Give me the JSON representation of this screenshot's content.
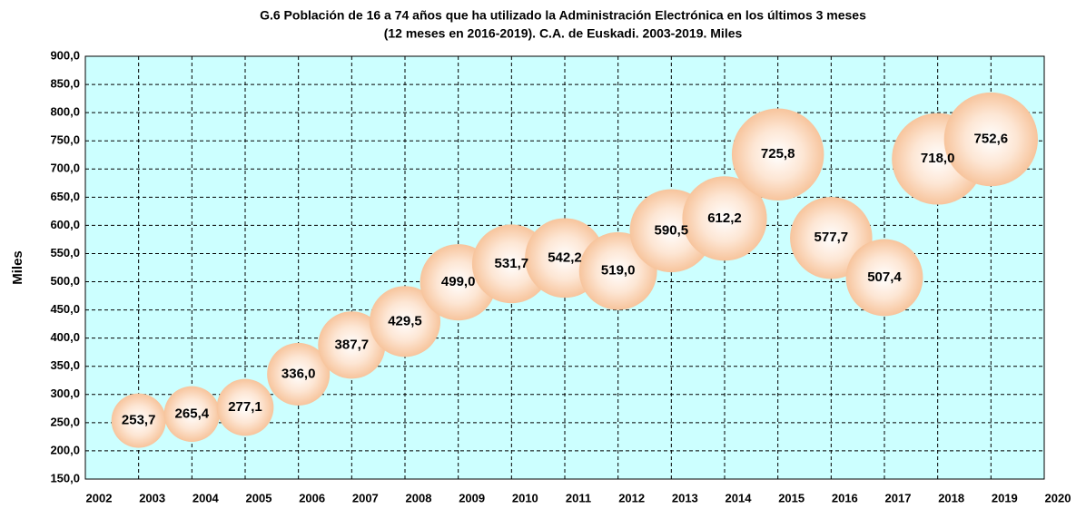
{
  "chart_data": {
    "type": "bubble",
    "title": "G.6 Población de 16 a 74 años que ha utilizado la Administración Electrónica en los últimos 3 meses",
    "subtitle": "(12 meses en 2016-2019).  C.A. de Euskadi.  2003-2019.  Miles",
    "ylabel": "Miles",
    "x": [
      2003,
      2004,
      2005,
      2006,
      2007,
      2008,
      2009,
      2010,
      2011,
      2012,
      2013,
      2014,
      2015,
      2016,
      2017,
      2018,
      2019
    ],
    "values": [
      253.7,
      265.4,
      277.1,
      336.0,
      387.7,
      429.5,
      499.0,
      531.7,
      542.2,
      519.0,
      590.5,
      612.2,
      725.8,
      577.7,
      507.4,
      718.0,
      752.6
    ],
    "value_labels": [
      "253,7",
      "265,4",
      "277,1",
      "336,0",
      "387,7",
      "429,5",
      "499,0",
      "531,7",
      "542,2",
      "519,0",
      "590,5",
      "612,2",
      "725,8",
      "577,7",
      "507,4",
      "718,0",
      "752,6"
    ],
    "color": "#f7c49c",
    "xlim": [
      2002,
      2020
    ],
    "xticks": [
      2002,
      2003,
      2004,
      2005,
      2006,
      2007,
      2008,
      2009,
      2010,
      2011,
      2012,
      2013,
      2014,
      2015,
      2016,
      2017,
      2018,
      2019,
      2020
    ],
    "ylim": [
      150,
      900
    ],
    "yticks": [
      {
        "value": 150,
        "label": "150,0"
      },
      {
        "value": 200,
        "label": "200,0"
      },
      {
        "value": 250,
        "label": "250,0"
      },
      {
        "value": 300,
        "label": "300,0"
      },
      {
        "value": 350,
        "label": "350,0"
      },
      {
        "value": 400,
        "label": "400,0"
      },
      {
        "value": 450,
        "label": "450,0"
      },
      {
        "value": 500,
        "label": "500,0"
      },
      {
        "value": 550,
        "label": "550,0"
      },
      {
        "value": 600,
        "label": "600,0"
      },
      {
        "value": 650,
        "label": "650,0"
      },
      {
        "value": 700,
        "label": "700,0"
      },
      {
        "value": 750,
        "label": "750,0"
      },
      {
        "value": 800,
        "label": "800,0"
      },
      {
        "value": 850,
        "label": "850,0"
      },
      {
        "value": 900,
        "label": "900,0"
      }
    ],
    "grid": true
  }
}
